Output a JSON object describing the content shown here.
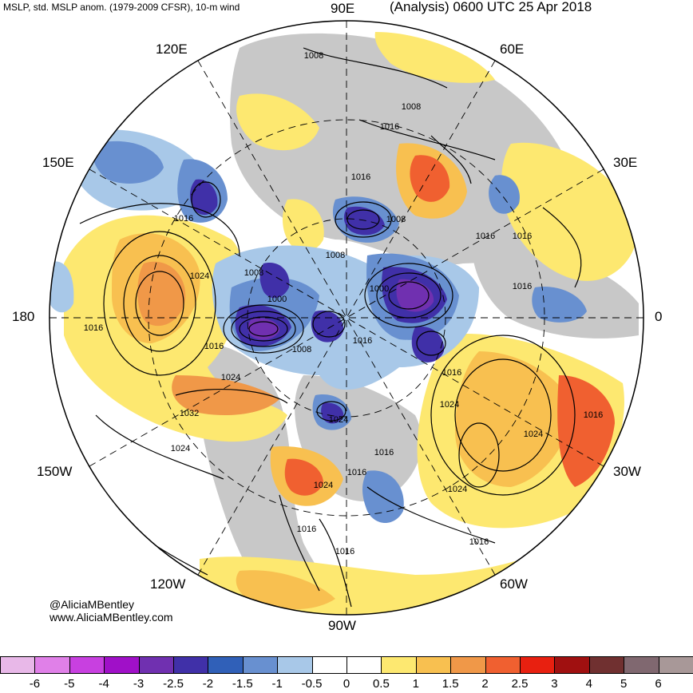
{
  "header": {
    "left_title": "MSLP, std. MSLP anom. (1979-2009 CFSR), 10-m wind",
    "right_title": "(Analysis) 0600 UTC 25 Apr 2018"
  },
  "longitude_labels": {
    "e90": "90E",
    "e60": "60E",
    "e120": "120E",
    "e150": "150E",
    "e30": "30E",
    "d180": "180",
    "d0": "0",
    "w150": "150W",
    "w30": "30W",
    "w120": "120W",
    "w60": "60W",
    "w90": "90W"
  },
  "contour_labels": [
    "1008",
    "1008",
    "1016",
    "1016",
    "1016",
    "1008",
    "1016",
    "1016",
    "1016",
    "1024",
    "1008",
    "1008",
    "1000",
    "1000",
    "1008",
    "1016",
    "1016",
    "1024",
    "1024",
    "1032",
    "1024",
    "1016",
    "1016",
    "1024",
    "1016",
    "1016",
    "1024",
    "1024",
    "1016",
    "1016",
    "1016",
    "1016",
    "1024"
  ],
  "credits": {
    "handle": "@AliciaMBentley",
    "website": "www.AliciaMBentley.com"
  },
  "colorbar": {
    "ticks": [
      "-6",
      "-5",
      "-4",
      "-3",
      "-2.5",
      "-2",
      "-1.5",
      "-1",
      "-0.5",
      "0",
      "0.5",
      "1",
      "1.5",
      "2",
      "2.5",
      "3",
      "4",
      "5",
      "6"
    ],
    "colors": [
      "#e8b8e8",
      "#e080e8",
      "#c840e0",
      "#a010c8",
      "#7030b0",
      "#4030a8",
      "#3060b8",
      "#6890d0",
      "#a8c8e8",
      "#ffffff",
      "#ffffff",
      "#fde870",
      "#f8c050",
      "#f09848",
      "#f06030",
      "#e82010",
      "#a01010",
      "#703030",
      "#806870",
      "#a89898"
    ]
  },
  "map_colors": {
    "land_gray": "#c8c8c8",
    "ocean": "#ffffff",
    "contour": "#000000"
  }
}
